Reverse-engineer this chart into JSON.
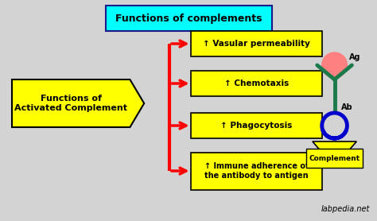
{
  "bg_color": "#d3d3d3",
  "title_text": "Functions of complements",
  "title_box_color": "#00ffff",
  "title_box_edge": "#1a1a8c",
  "left_box_text": "Functions of\nActivated Complement",
  "left_box_color": "#ffff00",
  "left_box_edge": "#000000",
  "items": [
    {
      "label": "↑ Vasular permeability"
    },
    {
      "label": "↑ Chemotaxis"
    },
    {
      "label": "↑ Phagocytosis"
    },
    {
      "label": "↑ Immune adherence of\nthe antibody to antigen"
    }
  ],
  "item_box_color": "#ffff00",
  "item_box_edge": "#000000",
  "arrow_color": "#ff0000",
  "watermark": "labpedia.net",
  "complement_label": "Complement",
  "ag_label": "Ag",
  "ab_label": "Ab",
  "antibody_color": "#1a7a4a",
  "antigen_color": "#ff8080",
  "circle_color": "#0000cc",
  "triangle_color": "#ffff00"
}
